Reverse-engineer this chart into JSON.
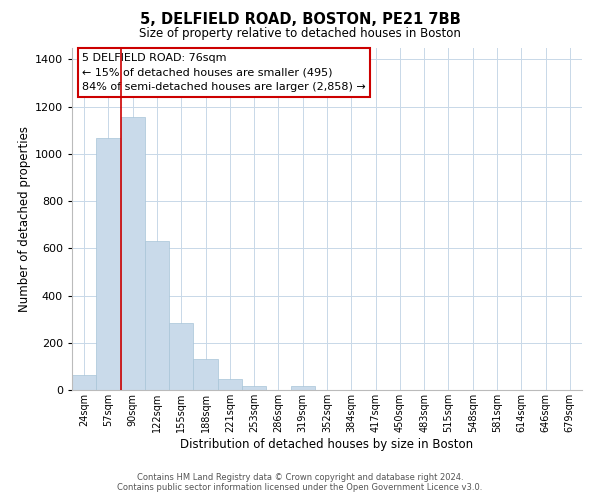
{
  "title": "5, DELFIELD ROAD, BOSTON, PE21 7BB",
  "subtitle": "Size of property relative to detached houses in Boston",
  "xlabel": "Distribution of detached houses by size in Boston",
  "ylabel": "Number of detached properties",
  "bar_labels": [
    "24sqm",
    "57sqm",
    "90sqm",
    "122sqm",
    "155sqm",
    "188sqm",
    "221sqm",
    "253sqm",
    "286sqm",
    "319sqm",
    "352sqm",
    "384sqm",
    "417sqm",
    "450sqm",
    "483sqm",
    "515sqm",
    "548sqm",
    "581sqm",
    "614sqm",
    "646sqm",
    "679sqm"
  ],
  "bar_heights": [
    65,
    1065,
    1155,
    630,
    285,
    130,
    48,
    18,
    0,
    18,
    0,
    0,
    0,
    0,
    0,
    0,
    0,
    0,
    0,
    0,
    0
  ],
  "bar_color": "#c9daea",
  "bar_edge_color": "#a8c4d8",
  "vline_x_index": 1.5,
  "vline_color": "#cc0000",
  "ylim": [
    0,
    1450
  ],
  "yticks": [
    0,
    200,
    400,
    600,
    800,
    1000,
    1200,
    1400
  ],
  "annotation_title": "5 DELFIELD ROAD: 76sqm",
  "annotation_line1": "← 15% of detached houses are smaller (495)",
  "annotation_line2": "84% of semi-detached houses are larger (2,858) →",
  "annotation_box_color": "white",
  "annotation_box_edge_color": "#cc0000",
  "footer1": "Contains HM Land Registry data © Crown copyright and database right 2024.",
  "footer2": "Contains public sector information licensed under the Open Government Licence v3.0.",
  "bg_color": "white",
  "grid_color": "#c8d8e8"
}
